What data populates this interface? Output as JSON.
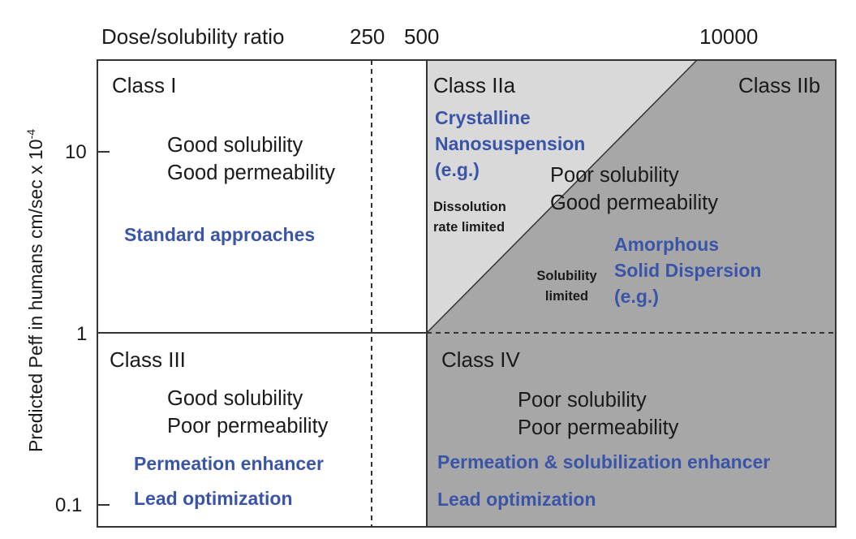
{
  "header": {
    "axis_title": "Dose/solubility ratio",
    "ticks": [
      "250",
      "500",
      "10000"
    ]
  },
  "y_axis": {
    "label": "Predicted Peff in humans cm/sec x 10",
    "exponent": "-4",
    "ticks": [
      "10",
      "1",
      "0.1"
    ]
  },
  "class_1": {
    "title": "Class I",
    "desc_1": "Good solubility",
    "desc_2": "Good permeability",
    "approach": "Standard approaches"
  },
  "class_2a": {
    "title": "Class IIa",
    "approach_1": "Crystalline",
    "approach_2": "Nanosuspension",
    "approach_3": "(e.g.)",
    "note_1": "Dissolution",
    "note_2": "rate limited"
  },
  "class_2b": {
    "title": "Class IIb",
    "desc_1": "Poor solubility",
    "desc_2": "Good permeability",
    "note_1": "Solubility",
    "note_2": "limited",
    "approach_1": "Amorphous",
    "approach_2": "Solid Dispersion",
    "approach_3": "(e.g.)"
  },
  "class_3": {
    "title": "Class III",
    "desc_1": "Good solubility",
    "desc_2": "Poor permeability",
    "approach_1": "Permeation enhancer",
    "approach_2": "Lead optimization"
  },
  "class_4": {
    "title": "Class IV",
    "desc_1": "Poor solubility",
    "desc_2": "Poor permeability",
    "approach_1": "Permeation & solubilization enhancer",
    "approach_2": "Lead optimization"
  },
  "colors": {
    "class_2a_fill": "#d9d9d9",
    "shaded_fill": "#a7a7a7",
    "approach_text": "#3a55a8",
    "line": "#333333"
  }
}
